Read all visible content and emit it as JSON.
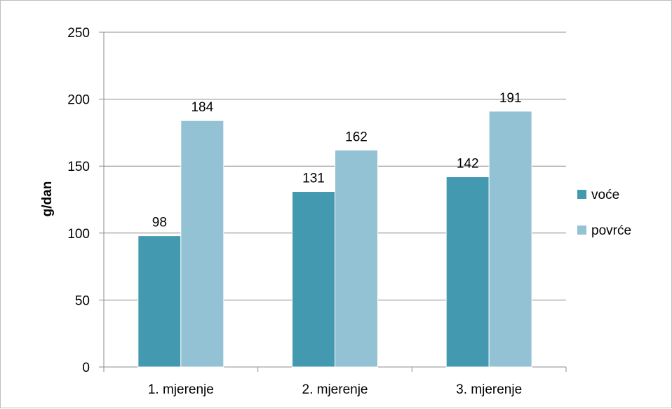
{
  "chart_data": {
    "type": "bar",
    "categories": [
      "1. mjerenje",
      "2. mjerenje",
      "3. mjerenje"
    ],
    "series": [
      {
        "name": "voće",
        "values": [
          98,
          131,
          142
        ],
        "color": "#4299b0"
      },
      {
        "name": "povrće",
        "values": [
          184,
          162,
          191
        ],
        "color": "#93c2d5"
      }
    ],
    "ylabel": "g/dan",
    "xlabel": "",
    "ylim": [
      0,
      250
    ],
    "yticks": [
      0,
      50,
      100,
      150,
      200,
      250
    ],
    "grid": true,
    "legend_position": "right"
  }
}
